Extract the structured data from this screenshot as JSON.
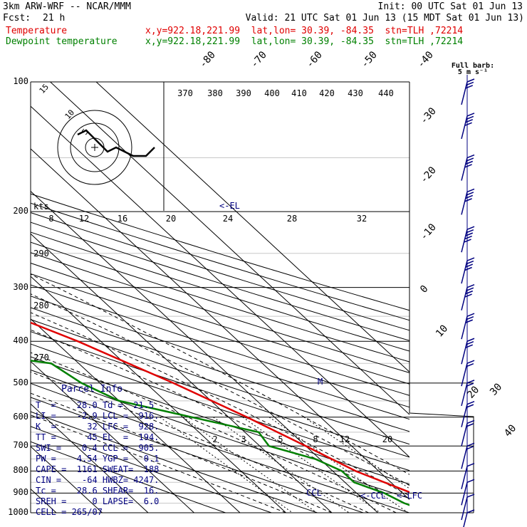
{
  "header": {
    "model": "3km ARW-WRF -- NCAR/MMM",
    "init": "Init: 00 UTC Sat 01 Jun 13",
    "fcst_label": "Fcst:",
    "fcst_value": "21 h",
    "valid": "Valid: 21 UTC Sat 01 Jun 13 (15 MDT Sat 01 Jun 13)",
    "temp_name": "Temperature",
    "temp_loc": "x,y=922.18,221.99  lat,lon= 30.39, -84.35  stn=TLH ,72214",
    "dew_name": "Dewpoint temperature",
    "dew_loc": "x,y=922.18,221.99  lat,lon= 30.39, -84.35  stn=TLH ,72214"
  },
  "colors": {
    "temperature": "#e00000",
    "dewpoint": "#008000",
    "parcel_text": "#000080",
    "barbs": "#000080"
  },
  "pressure_labels": [
    "100",
    "200",
    "300",
    "400",
    "500",
    "600",
    "700",
    "800",
    "900",
    "1000"
  ],
  "chart_data": {
    "type": "line",
    "title": "",
    "xlabel": "",
    "ylabel": "",
    "pressure_levels_hpa": [
      100,
      200,
      300,
      400,
      500,
      600,
      700,
      800,
      900,
      1000
    ],
    "isotherm_labels_c": [
      "-80",
      "-70",
      "-60",
      "-50",
      "-40",
      "-30",
      "-20",
      "-10",
      "0",
      "10",
      "20",
      "30",
      "40"
    ],
    "dry_adiabat_labels_k": [
      "370",
      "380",
      "390",
      "400",
      "410",
      "420",
      "430",
      "440",
      "290",
      "280",
      "270"
    ],
    "mixing_ratio_labels": [
      "2",
      "3",
      "5",
      "8",
      "12",
      "20"
    ],
    "series": [
      {
        "name": "Temperature",
        "pressure": [
          100,
          130,
          170,
          200,
          250,
          300,
          400,
          500,
          600,
          700,
          800,
          900,
          1000
        ],
        "values": [
          -70,
          -62,
          -62,
          -57,
          -44,
          -32,
          -15,
          -4,
          4,
          10,
          15,
          22,
          28
        ]
      },
      {
        "name": "Dewpoint temperature",
        "pressure": [
          100,
          130,
          170,
          200,
          250,
          300,
          350,
          400,
          450,
          500,
          550,
          600,
          650,
          700,
          750,
          800,
          850,
          900,
          950,
          1000
        ],
        "values": [
          -74,
          -80,
          -77,
          -76,
          -78,
          -66,
          -56,
          -57,
          -26,
          -24,
          -20,
          -8,
          3,
          2,
          9,
          12,
          12,
          16,
          18,
          21.5
        ]
      }
    ],
    "annotations": [
      "<-EL",
      "M",
      "CCL",
      "<-CCL",
      "<-LFC"
    ],
    "hodograph": {
      "label": "kts",
      "ring_labels": [
        "5",
        "10",
        "15"
      ],
      "speed_axis_labels": [
        "8",
        "12",
        "16",
        "20",
        "24",
        "28",
        "32"
      ],
      "u_kts": [
        -4,
        -2,
        1,
        3,
        5,
        7,
        9,
        12,
        14
      ],
      "v_kts": [
        3,
        4,
        1,
        -1,
        0,
        -1,
        -2,
        -2,
        0
      ]
    },
    "wind_barb_header": {
      "line1": "Full barb:",
      "line2": "5 m s⁻¹"
    },
    "wind_barbs_ms": [
      {
        "p": 100,
        "speed": 15
      },
      {
        "p": 120,
        "speed": 20
      },
      {
        "p": 150,
        "speed": 20
      },
      {
        "p": 180,
        "speed": 20
      },
      {
        "p": 220,
        "speed": 25
      },
      {
        "p": 260,
        "speed": 20
      },
      {
        "p": 300,
        "speed": 20
      },
      {
        "p": 350,
        "speed": 15
      },
      {
        "p": 400,
        "speed": 15
      },
      {
        "p": 450,
        "speed": 10
      },
      {
        "p": 500,
        "speed": 10
      },
      {
        "p": 560,
        "speed": 10
      },
      {
        "p": 620,
        "speed": 10
      },
      {
        "p": 700,
        "speed": 10
      },
      {
        "p": 780,
        "speed": 5
      },
      {
        "p": 850,
        "speed": 5
      },
      {
        "p": 920,
        "speed": 5
      },
      {
        "p": 1000,
        "speed": 5
      }
    ]
  },
  "parcel_info": {
    "title": "Parcel Info",
    "rows": [
      "T  =    28.0 Td =  21.5",
      "LI =    -2.9 LCL =  916.",
      "K  =      32 LFC =  928.",
      "TT =      45 EL  =  194.",
      "SWI =    0.4 CCL =  905.",
      "PW =    4.54 YGP =   0.1",
      "CAPE =  1161 SWEAT=  188",
      "CIN =    -64 HWBZ= 4247.",
      "Tc =    28.6 SHEAR=  16.",
      "SREH =     0 LAPSE=  6.0",
      "CELL = 265/07"
    ]
  }
}
